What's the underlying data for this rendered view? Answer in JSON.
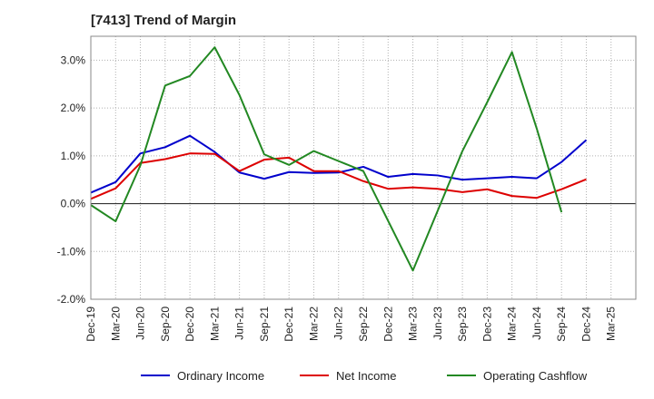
{
  "chart_data": {
    "type": "line",
    "title": "[7413]  Trend of Margin",
    "xlabel": "",
    "ylabel": "",
    "categories": [
      "Dec-19",
      "Mar-20",
      "Jun-20",
      "Sep-20",
      "Dec-20",
      "Mar-21",
      "Jun-21",
      "Sep-21",
      "Dec-21",
      "Mar-22",
      "Jun-22",
      "Sep-22",
      "Dec-22",
      "Mar-23",
      "Jun-23",
      "Sep-23",
      "Dec-23",
      "Mar-24",
      "Jun-24",
      "Sep-24",
      "Dec-24",
      "Mar-25"
    ],
    "y_tick_labels": [
      "3.0%",
      "2.0%",
      "1.0%",
      "0.0%",
      "-1.0%",
      "-2.0%"
    ],
    "y_tick_values": [
      3,
      2,
      1,
      0,
      -1,
      -2
    ],
    "ylim": [
      -2.0,
      3.5
    ],
    "grid": true,
    "legend_position": "bottom",
    "series": [
      {
        "name": "Ordinary Income",
        "color": "#0000cc",
        "values": [
          0.23,
          0.45,
          1.05,
          1.18,
          1.42,
          1.08,
          0.65,
          0.52,
          0.66,
          0.64,
          0.65,
          0.77,
          0.56,
          0.62,
          0.59,
          0.5,
          0.53,
          0.56,
          0.53,
          0.87,
          1.33,
          null
        ]
      },
      {
        "name": "Net Income",
        "color": "#dd0000",
        "values": [
          0.1,
          0.32,
          0.85,
          0.93,
          1.05,
          1.04,
          0.68,
          0.92,
          0.96,
          0.68,
          0.68,
          0.47,
          0.31,
          0.34,
          0.31,
          0.24,
          0.3,
          0.16,
          0.12,
          0.3,
          0.51,
          null
        ]
      },
      {
        "name": "Operating Cashflow",
        "color": "#228822",
        "values": [
          -0.03,
          -0.37,
          0.8,
          2.47,
          2.67,
          3.27,
          2.27,
          1.03,
          0.81,
          1.1,
          0.89,
          0.68,
          -0.36,
          -1.4,
          -0.15,
          1.1,
          2.12,
          3.17,
          1.57,
          -0.18,
          null,
          null
        ]
      }
    ]
  }
}
